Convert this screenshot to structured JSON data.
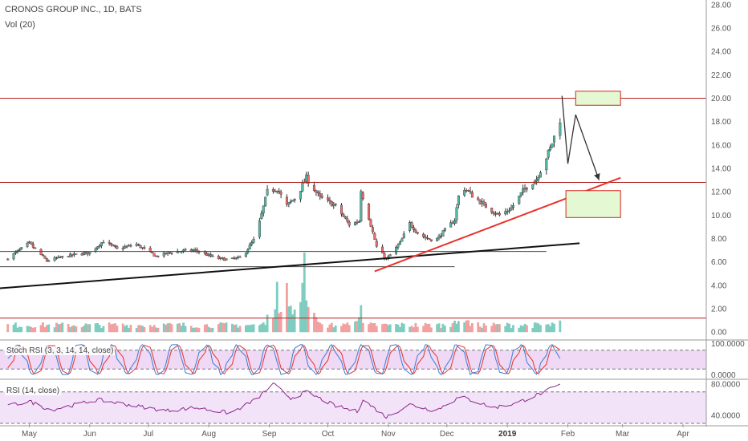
{
  "header": {
    "title": "CRONOS GROUP INC., 1D, BATS",
    "volume_label": "Vol (20)"
  },
  "stoch_pane": {
    "label": "Stoch RSI (3, 3, 14, 14, close)",
    "ticks": [
      "100.0000",
      "0.0000"
    ]
  },
  "rsi_pane": {
    "label": "RSI (14, close)",
    "ticks": [
      "80.0000",
      "40.0000"
    ]
  },
  "colors": {
    "up": "#53b9a6",
    "down": "#ef6c6c",
    "vol_up": "#7fcdc0",
    "vol_down": "#f2a0a0",
    "hline": "#b22222",
    "trend_black": "#111111",
    "trend_red": "#e8332a",
    "zone_fill": "#e4f8d3",
    "zone_stroke": "#d9261c",
    "stoch_k": "#3a7bd5",
    "stoch_d": "#e8332a",
    "stoch_bg": "#efd9f5",
    "rsi_line": "#8b2a8b",
    "rsi_bg": "#f3e3f8"
  },
  "chart_data": [
    {
      "type": "candlestick",
      "title": "CRONOS GROUP INC., 1D, BATS",
      "x_labels": [
        "May",
        "Jun",
        "Jul",
        "Aug",
        "Sep",
        "Oct",
        "Nov",
        "Dec",
        "2019",
        "Feb",
        "Mar",
        "Apr"
      ],
      "y_ticks": [
        "28.00",
        "26.00",
        "24.00",
        "22.00",
        "20.00",
        "18.00",
        "16.00",
        "14.00",
        "12.00",
        "10.00",
        "8.00",
        "6.00",
        "4.00",
        "2.00",
        "0.00"
      ],
      "ylim": [
        -0.6,
        28.4
      ],
      "close_anchors": [
        [
          "2018-04-20",
          6.3
        ],
        [
          "2018-05-01",
          7.6
        ],
        [
          "2018-05-10",
          6.1
        ],
        [
          "2018-05-20",
          6.5
        ],
        [
          "2018-06-01",
          6.8
        ],
        [
          "2018-06-08",
          7.8
        ],
        [
          "2018-06-15",
          7.1
        ],
        [
          "2018-06-25",
          7.5
        ],
        [
          "2018-07-05",
          6.5
        ],
        [
          "2018-07-15",
          6.9
        ],
        [
          "2018-07-25",
          7.0
        ],
        [
          "2018-08-05",
          6.3
        ],
        [
          "2018-08-12",
          6.2
        ],
        [
          "2018-08-18",
          6.4
        ],
        [
          "2018-08-25",
          8.1
        ],
        [
          "2018-08-31",
          12.0
        ],
        [
          "2018-09-05",
          12.3
        ],
        [
          "2018-09-10",
          10.8
        ],
        [
          "2018-09-15",
          11.6
        ],
        [
          "2018-09-20",
          13.2
        ],
        [
          "2018-09-27",
          11.5
        ],
        [
          "2018-10-05",
          10.8
        ],
        [
          "2018-10-12",
          9.2
        ],
        [
          "2018-10-17",
          9.5
        ],
        [
          "2018-10-18",
          12.2
        ],
        [
          "2018-10-22",
          9.8
        ],
        [
          "2018-10-26",
          7.3
        ],
        [
          "2018-10-31",
          6.2
        ],
        [
          "2018-11-07",
          7.6
        ],
        [
          "2018-11-12",
          9.3
        ],
        [
          "2018-11-17",
          8.3
        ],
        [
          "2018-11-25",
          7.8
        ],
        [
          "2018-12-05",
          9.6
        ],
        [
          "2018-12-08",
          12.6
        ],
        [
          "2018-12-14",
          11.7
        ],
        [
          "2018-12-22",
          10.6
        ],
        [
          "2018-12-28",
          10.0
        ],
        [
          "2019-01-03",
          10.6
        ],
        [
          "2019-01-10",
          12.3
        ],
        [
          "2019-01-16",
          13.1
        ],
        [
          "2019-01-23",
          15.7
        ],
        [
          "2019-01-28",
          18.2
        ]
      ],
      "horizontal_levels": [
        20.0,
        12.8,
        6.9,
        5.6,
        1.2
      ],
      "trendlines": [
        {
          "color": "black",
          "from": [
            "2018-04-12",
            3.7
          ],
          "to": [
            "2019-02-07",
            7.6
          ]
        },
        {
          "color": "red",
          "from": [
            "2018-10-25",
            5.2
          ],
          "to": [
            "2019-02-28",
            13.2
          ]
        }
      ],
      "zones": [
        {
          "from": [
            "2019-02-05",
            20.6
          ],
          "to": [
            "2019-02-28",
            19.4
          ]
        },
        {
          "from": [
            "2019-01-31",
            12.1
          ],
          "to": [
            "2019-02-28",
            9.8
          ]
        }
      ],
      "projection_path": [
        [
          "2019-01-29",
          20.2
        ],
        [
          "2019-02-01",
          14.4
        ],
        [
          "2019-02-05",
          18.6
        ],
        [
          "2019-02-17",
          13.0
        ]
      ]
    },
    {
      "type": "bar",
      "name": "Vol (20)",
      "peaks": [
        [
          "2018-09-05",
          4.3
        ],
        [
          "2018-09-10",
          4.2
        ],
        [
          "2018-09-19",
          6.8
        ],
        [
          "2018-09-22",
          2.5
        ],
        [
          "2018-10-18",
          2.3
        ],
        [
          "2018-12-08",
          2.5
        ],
        [
          "2019-01-28",
          1.0
        ]
      ]
    },
    {
      "type": "line",
      "name": "Stoch RSI (3, 3, 14, 14, close)",
      "ylim": [
        0,
        100
      ],
      "reference_levels": [
        80,
        20
      ]
    },
    {
      "type": "line",
      "name": "RSI (14, close)",
      "ylim": [
        30,
        85
      ],
      "reference_levels": [
        70,
        30
      ],
      "anchors": [
        [
          "2018-04-20",
          52
        ],
        [
          "2018-05-01",
          58
        ],
        [
          "2018-05-12",
          47
        ],
        [
          "2018-06-05",
          60
        ],
        [
          "2018-06-20",
          54
        ],
        [
          "2018-07-10",
          46
        ],
        [
          "2018-07-25",
          50
        ],
        [
          "2018-08-12",
          43
        ],
        [
          "2018-08-25",
          60
        ],
        [
          "2018-09-03",
          80
        ],
        [
          "2018-09-12",
          62
        ],
        [
          "2018-09-20",
          70
        ],
        [
          "2018-10-05",
          52
        ],
        [
          "2018-10-16",
          45
        ],
        [
          "2018-10-19",
          60
        ],
        [
          "2018-10-31",
          38
        ],
        [
          "2018-11-12",
          54
        ],
        [
          "2018-11-25",
          46
        ],
        [
          "2018-12-08",
          64
        ],
        [
          "2018-12-25",
          50
        ],
        [
          "2019-01-05",
          55
        ],
        [
          "2019-01-20",
          70
        ],
        [
          "2019-01-28",
          79
        ]
      ]
    }
  ]
}
